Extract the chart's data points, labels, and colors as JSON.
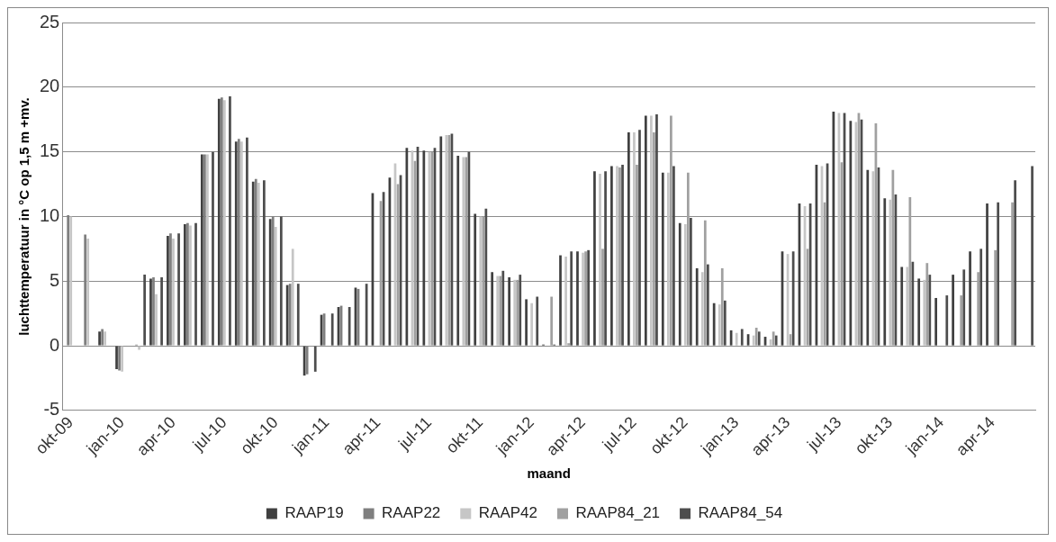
{
  "chart_data": {
    "type": "bar",
    "xlabel": "maand",
    "ylabel": "luchttemperatuur in °C op 1,5 m +mv.",
    "categories": [
      "okt-09",
      null,
      null,
      "jan-10",
      null,
      null,
      "apr-10",
      null,
      null,
      "jul-10",
      null,
      null,
      "okt-10",
      null,
      null,
      "jan-11",
      null,
      null,
      "apr-11",
      null,
      null,
      "jul-11",
      null,
      null,
      "okt-11",
      null,
      null,
      "jan-12",
      null,
      null,
      "apr-12",
      null,
      null,
      "jul-12",
      null,
      null,
      "okt-12",
      null,
      null,
      "jan-13",
      null,
      null,
      "apr-13",
      null,
      null,
      "jul-13",
      null,
      null,
      "okt-13",
      null,
      null,
      "jan-14",
      null,
      null,
      "apr-14",
      null,
      null
    ],
    "series": [
      {
        "name": "RAAP19",
        "color": "#404040",
        "values": [
          null,
          null,
          1.1,
          -1.8,
          null,
          5.2,
          8.5,
          9.4,
          14.8,
          19.1,
          15.8,
          12.7,
          9.8,
          4.7,
          -2.3,
          2.4,
          3.0,
          4.5,
          11.8,
          13.0,
          15.3,
          15.1,
          16.2,
          14.7,
          10.2,
          5.7,
          5.3,
          3.6,
          0.1,
          7.0,
          7.3,
          13.5,
          13.9,
          16.5,
          17.8,
          13.4,
          9.5,
          6.0,
          3.3,
          1.2,
          0.9,
          0.7,
          7.3,
          11.0,
          14.0,
          18.1,
          17.4,
          13.6,
          11.4,
          6.1,
          5.2,
          3.7,
          5.5,
          7.3,
          11.0,
          null,
          null
        ]
      },
      {
        "name": "RAAP22",
        "color": "#7f7f7f",
        "values": [
          10.1,
          8.6,
          1.3,
          -1.9,
          0.1,
          5.3,
          8.7,
          9.5,
          14.8,
          19.2,
          16.0,
          12.9,
          10.0,
          4.8,
          -2.2,
          2.5,
          3.1,
          4.4,
          null,
          null,
          null,
          null,
          null,
          null,
          null,
          null,
          null,
          null,
          null,
          null,
          null,
          null,
          null,
          null,
          null,
          null,
          null,
          null,
          null,
          null,
          null,
          null,
          null,
          null,
          null,
          null,
          null,
          null,
          null,
          null,
          null,
          null,
          null,
          null,
          null,
          null,
          null
        ]
      },
      {
        "name": "RAAP42",
        "color": "#c6c6c6",
        "values": [
          10.0,
          8.3,
          1.1,
          -2.0,
          -0.3,
          4.0,
          8.3,
          9.3,
          14.8,
          19.0,
          15.8,
          12.6,
          9.2,
          7.5,
          null,
          null,
          null,
          null,
          null,
          14.1,
          15.1,
          15.0,
          16.3,
          14.6,
          10.0,
          5.4,
          5.1,
          3.3,
          null,
          6.9,
          7.2,
          13.3,
          13.9,
          16.5,
          17.8,
          13.4,
          9.4,
          5.7,
          3.2,
          1.0,
          0.8,
          0.5,
          7.1,
          10.8,
          13.9,
          18.0,
          17.3,
          13.5,
          11.3,
          6.1,
          5.1,
          null,
          null,
          null,
          null,
          null,
          null
        ]
      },
      {
        "name": "RAAP84_21",
        "color": "#a0a0a0",
        "values": [
          null,
          null,
          null,
          null,
          null,
          null,
          null,
          null,
          null,
          null,
          null,
          null,
          null,
          null,
          null,
          null,
          null,
          null,
          11.2,
          12.5,
          14.3,
          15.0,
          16.3,
          14.6,
          10.0,
          5.4,
          5.1,
          null,
          3.8,
          0.2,
          7.3,
          7.5,
          13.8,
          14.0,
          16.5,
          17.8,
          13.4,
          9.7,
          6.0,
          null,
          1.4,
          1.1,
          0.9,
          7.5,
          11.1,
          14.2,
          18.0,
          17.2,
          13.6,
          11.5,
          6.4,
          null,
          3.9,
          5.7,
          7.4,
          11.1,
          null
        ]
      },
      {
        "name": "RAAP84_54",
        "color": "#4d4d4d",
        "values": [
          null,
          null,
          null,
          null,
          5.5,
          5.3,
          8.7,
          9.5,
          15.0,
          19.3,
          16.1,
          12.8,
          10.0,
          4.8,
          -2.0,
          2.5,
          3.0,
          4.8,
          11.9,
          13.2,
          15.4,
          15.3,
          16.4,
          15.0,
          10.6,
          5.8,
          5.5,
          3.8,
          0.1,
          7.3,
          7.4,
          13.5,
          14.0,
          16.7,
          17.9,
          13.9,
          9.9,
          6.3,
          3.5,
          1.3,
          1.1,
          0.8,
          7.3,
          11.0,
          14.1,
          18.0,
          17.5,
          13.8,
          11.7,
          6.5,
          5.5,
          3.9,
          5.9,
          7.5,
          11.1,
          12.8,
          13.9
        ]
      }
    ],
    "ylim": [
      -5,
      25
    ],
    "yticks": [
      -5,
      0,
      5,
      10,
      15,
      20,
      25
    ],
    "grid": "y",
    "legend": "bottom"
  }
}
